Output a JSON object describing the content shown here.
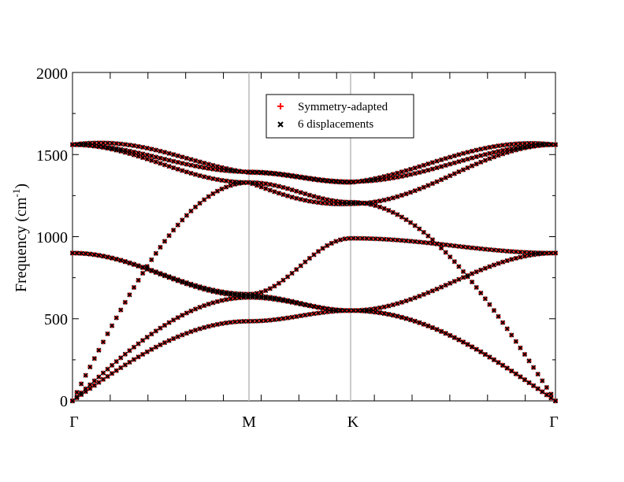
{
  "chart_data": {
    "type": "scatter",
    "title": "",
    "ylabel_main": "Frequency (cm",
    "ylabel_sup": "-1",
    "ylabel_close": ")",
    "ylim": [
      0,
      2000
    ],
    "yticks": [
      "0",
      "500",
      "1000",
      "1500",
      "2000"
    ],
    "x_high_symmetry_labels": [
      "Γ",
      "M",
      "K",
      "Γ"
    ],
    "x_high_symmetry_positions": [
      0,
      0.366,
      0.577,
      1.0
    ],
    "vertical_lines_at": [
      0.366,
      0.577
    ],
    "grid": false,
    "legend": {
      "placement": "top-center",
      "entries": [
        {
          "name": "Symmetry-adapted",
          "color": "#ff0000",
          "marker": "plus"
        },
        {
          "name": "6 displacements",
          "color": "#000000",
          "marker": "x"
        }
      ]
    },
    "series": [
      {
        "name": "Symmetry-adapted",
        "bands": [
          {
            "x": [
              0,
              0.366,
              0.577,
              1.0
            ],
            "y": [
              0,
              485,
              550,
              0
            ]
          },
          {
            "x": [
              0,
              0.366,
              0.577,
              1.0
            ],
            "y": [
              0,
              630,
              550,
              0
            ]
          },
          {
            "x": [
              0,
              0.366,
              0.577,
              1.0
            ],
            "y": [
              0,
              1330,
              1210,
              0
            ]
          },
          {
            "x": [
              0,
              0.366,
              0.577,
              1.0
            ],
            "y": [
              900,
              640,
              550,
              900
            ]
          },
          {
            "x": [
              0,
              0.366,
              0.577,
              1.0
            ],
            "y": [
              900,
              650,
              990,
              900
            ]
          },
          {
            "x": [
              0,
              0.366,
              0.577,
              1.0
            ],
            "y": [
              1560,
              1390,
              1330,
              1560
            ]
          },
          {
            "x": [
              0,
              0.366,
              0.577,
              1.0
            ],
            "y": [
              1560,
              1330,
              1200,
              1560
            ]
          },
          {
            "x": [
              0,
              0.366,
              0.577,
              1.0
            ],
            "y": [
              1560,
              1390,
              1330,
              1560
            ]
          }
        ]
      },
      {
        "name": "6 displacements",
        "bands": "same as Symmetry-adapted"
      }
    ]
  }
}
